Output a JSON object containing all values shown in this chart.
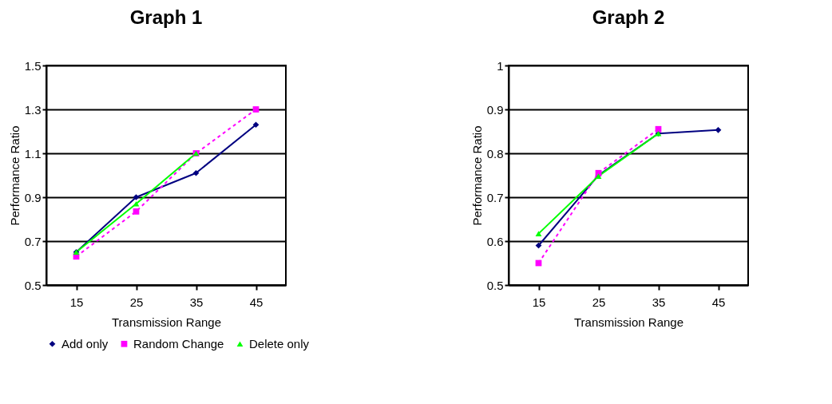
{
  "chart_data": [
    {
      "type": "line",
      "title": "Graph 1",
      "xlabel": "Transmission Range",
      "ylabel": "Performance Ratio",
      "categories": [
        "15",
        "25",
        "35",
        "45"
      ],
      "ylim": [
        0.5,
        1.5
      ],
      "yticks": [
        0.5,
        0.7,
        0.9,
        1.1,
        1.3,
        1.5
      ],
      "grid": "y",
      "legend": "bottom",
      "series": [
        {
          "name": "Add only",
          "color": "#000080",
          "marker": "diamond",
          "line_style": "solid",
          "values": [
            0.65,
            0.9,
            1.01,
            1.23
          ]
        },
        {
          "name": "Random Change",
          "color": "#ff00ff",
          "marker": "square",
          "line_style": "dashed",
          "values": [
            0.63,
            0.835,
            1.1,
            1.3
          ]
        },
        {
          "name": "Delete only",
          "color": "#00ff00",
          "marker": "triangle",
          "line_style": "solid",
          "values": [
            0.65,
            0.87,
            1.1,
            null
          ]
        }
      ]
    },
    {
      "type": "line",
      "title": "Graph 2",
      "xlabel": "Transmission Range",
      "ylabel": "Performance Ratio",
      "categories": [
        "15",
        "25",
        "35",
        "45"
      ],
      "ylim": [
        0.5,
        1
      ],
      "yticks": [
        0.5,
        0.6,
        0.7,
        0.8,
        0.9,
        {
          "value": 1,
          "label": "1"
        }
      ],
      "grid": "y",
      "legend": false,
      "series": [
        {
          "color": "#000080",
          "marker": "diamond",
          "line_style": "solid",
          "values": [
            0.59,
            0.75,
            0.845,
            0.853
          ]
        },
        {
          "color": "#ff00ff",
          "marker": "square",
          "line_style": "dashed",
          "values": [
            0.55,
            0.755,
            0.855,
            null
          ]
        },
        {
          "color": "#00ff00",
          "marker": "triangle",
          "line_style": "solid",
          "values": [
            0.617,
            0.748,
            0.845,
            null
          ]
        }
      ]
    }
  ]
}
